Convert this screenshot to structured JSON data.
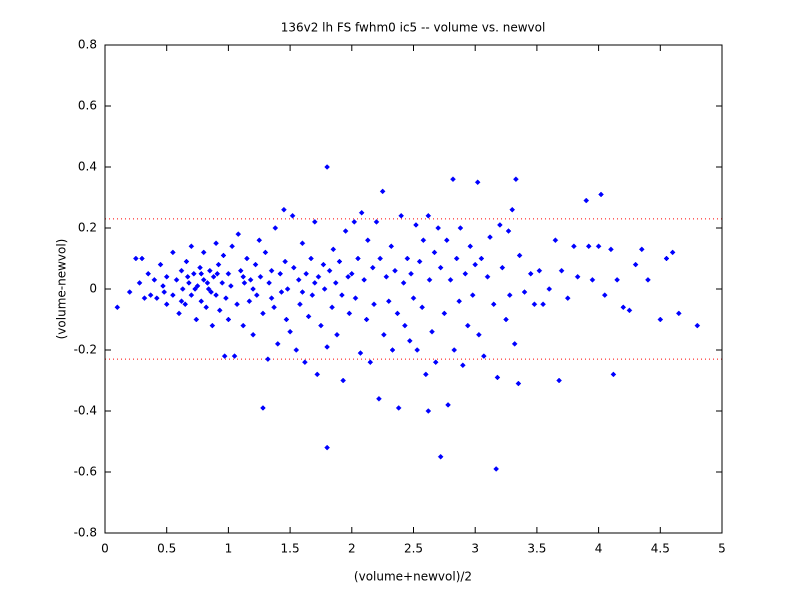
{
  "chart_data": {
    "type": "scatter",
    "title": "136v2 lh FS fwhm0 ic5 -- volume vs. newvol",
    "x_label": "(volume+newvol)/2",
    "y_label": "(volume-newvol)",
    "color": "#0000ff",
    "xlim": [
      0,
      5
    ],
    "ylim": [
      -0.8,
      0.8
    ],
    "xticks": [
      0,
      0.5,
      1,
      1.5,
      2,
      2.5,
      3,
      3.5,
      4,
      4.5,
      5
    ],
    "yticks": [
      -0.8,
      -0.6,
      -0.4,
      -0.2,
      0,
      0.2,
      0.4,
      0.6,
      0.8
    ],
    "reference_lines": [
      0.23,
      -0.23
    ],
    "reference_line_color": "#ff0000",
    "x": [
      0.1,
      0.2,
      0.25,
      0.3,
      0.28,
      0.32,
      0.35,
      0.37,
      0.4,
      0.42,
      0.45,
      0.47,
      0.5,
      0.5,
      0.48,
      0.55,
      0.55,
      0.58,
      0.6,
      0.62,
      0.63,
      0.65,
      0.66,
      0.68,
      0.7,
      0.7,
      0.72,
      0.74,
      0.75,
      0.77,
      0.78,
      0.8,
      0.8,
      0.82,
      0.84,
      0.85,
      0.87,
      0.88,
      0.9,
      0.9,
      0.92,
      0.93,
      0.95,
      0.96,
      0.97,
      0.98,
      1.0,
      1.0,
      0.62,
      0.67,
      0.73,
      0.78,
      0.83,
      0.86,
      0.91,
      1.02,
      1.03,
      1.05,
      1.07,
      1.08,
      1.1,
      1.12,
      1.13,
      1.15,
      1.17,
      1.18,
      1.2,
      1.22,
      1.23,
      1.25,
      1.26,
      1.28,
      1.28,
      1.3,
      1.32,
      1.33,
      1.35,
      1.37,
      1.38,
      1.4,
      1.42,
      1.43,
      1.45,
      1.46,
      1.47,
      1.48,
      1.5,
      1.12,
      1.2,
      1.35,
      1.52,
      1.53,
      1.55,
      1.57,
      1.58,
      1.6,
      1.62,
      1.63,
      1.65,
      1.67,
      1.68,
      1.7,
      1.72,
      1.73,
      1.75,
      1.77,
      1.78,
      1.8,
      1.8,
      1.8,
      1.82,
      1.84,
      1.85,
      1.87,
      1.88,
      1.9,
      1.92,
      1.93,
      1.95,
      1.97,
      1.98,
      2.0,
      1.6,
      1.7,
      2.02,
      2.03,
      2.05,
      2.07,
      2.08,
      2.1,
      2.12,
      2.13,
      2.15,
      2.17,
      2.18,
      2.2,
      2.22,
      2.23,
      2.25,
      2.26,
      2.28,
      2.3,
      2.32,
      2.33,
      2.35,
      2.37,
      2.38,
      2.4,
      2.42,
      2.43,
      2.45,
      2.47,
      2.48,
      2.5,
      2.52,
      2.53,
      2.55,
      2.57,
      2.58,
      2.6,
      2.62,
      2.62,
      2.63,
      2.65,
      2.67,
      2.68,
      2.7,
      2.72,
      2.72,
      2.75,
      2.77,
      2.78,
      2.8,
      2.82,
      2.83,
      2.85,
      2.87,
      2.88,
      2.9,
      2.92,
      2.94,
      2.96,
      2.98,
      3.0,
      3.02,
      3.03,
      3.05,
      3.07,
      3.1,
      3.12,
      3.15,
      3.17,
      3.18,
      3.2,
      3.22,
      3.25,
      3.27,
      3.28,
      3.3,
      3.32,
      3.33,
      3.35,
      3.36,
      3.4,
      3.45,
      3.48,
      3.52,
      3.55,
      3.6,
      3.65,
      3.68,
      3.7,
      3.75,
      3.8,
      3.83,
      3.9,
      3.92,
      3.95,
      4.0,
      4.02,
      4.05,
      4.1,
      4.12,
      4.15,
      4.2,
      4.25,
      4.3,
      4.35,
      4.4,
      4.5,
      4.55,
      4.6,
      4.65,
      4.8
    ],
    "values": [
      -0.06,
      -0.01,
      0.1,
      0.1,
      0.02,
      -0.03,
      0.05,
      -0.02,
      0.03,
      -0.03,
      0.08,
      0.01,
      -0.05,
      0.04,
      -0.01,
      0.12,
      -0.02,
      0.03,
      -0.08,
      0.06,
      0,
      -0.05,
      0.09,
      0.02,
      -0.02,
      0.14,
      0.05,
      -0.1,
      0.01,
      0.07,
      -0.04,
      0.03,
      0.12,
      -0.06,
      0,
      0.06,
      -0.12,
      0.04,
      -0.02,
      0.15,
      0.08,
      -0.07,
      0.02,
      0.11,
      -0.22,
      -0.03,
      0.05,
      -0.1,
      -0.04,
      0.04,
      0,
      0.05,
      0.02,
      -0.01,
      0.05,
      0.01,
      0.14,
      -0.22,
      -0.05,
      0.18,
      0.06,
      -0.12,
      0.02,
      0.1,
      -0.04,
      0.03,
      -0.15,
      0.08,
      -0.02,
      0.16,
      0.04,
      -0.39,
      -0.08,
      0.12,
      -0.23,
      0.02,
      0.06,
      -0.06,
      0.2,
      -0.18,
      0.05,
      -0.01,
      0.26,
      0.09,
      -0.1,
      0,
      -0.14,
      0.04,
      0,
      -0.03,
      0.24,
      0.07,
      -0.2,
      0.03,
      -0.05,
      0.15,
      -0.24,
      0.05,
      -0.09,
      0.1,
      -0.02,
      0.22,
      -0.28,
      0.04,
      -0.12,
      0.08,
      0,
      0.4,
      -0.52,
      -0.19,
      0.06,
      -0.06,
      0.13,
      0.02,
      -0.15,
      0.09,
      -0.02,
      -0.3,
      0.19,
      0.04,
      -0.08,
      0.05,
      -0.01,
      0.02,
      0.22,
      -0.03,
      0.1,
      -0.21,
      0.25,
      0.03,
      -0.1,
      0.16,
      -0.24,
      0.07,
      -0.05,
      0.22,
      -0.36,
      0.1,
      0.32,
      -0.15,
      0.04,
      -0.04,
      0.14,
      -0.2,
      0.06,
      -0.08,
      -0.39,
      0.24,
      0.02,
      -0.12,
      0.1,
      -0.17,
      0.05,
      -0.03,
      0.21,
      -0.2,
      0.09,
      -0.06,
      0.16,
      -0.28,
      0.24,
      -0.4,
      0.03,
      -0.14,
      0.12,
      -0.24,
      0.2,
      -0.55,
      0.07,
      -0.08,
      0.16,
      -0.38,
      0.03,
      0.36,
      -0.2,
      0.1,
      -0.04,
      0.2,
      -0.25,
      0.05,
      -0.12,
      0.14,
      -0.02,
      0.08,
      0.35,
      -0.15,
      0.1,
      -0.22,
      0.04,
      0.17,
      -0.05,
      -0.59,
      -0.29,
      0.21,
      0.07,
      -0.1,
      0.19,
      -0.02,
      0.26,
      -0.18,
      0.36,
      -0.31,
      0.11,
      -0.01,
      0.05,
      -0.05,
      0.06,
      -0.05,
      0,
      0.16,
      -0.3,
      0.06,
      -0.03,
      0.14,
      0.04,
      0.29,
      0.14,
      0.03,
      0.14,
      0.31,
      -0.02,
      0.13,
      -0.28,
      0.03,
      -0.06,
      -0.07,
      0.08,
      0.13,
      0.03,
      -0.1,
      0.1,
      0.12,
      -0.08,
      -0.12
    ]
  }
}
